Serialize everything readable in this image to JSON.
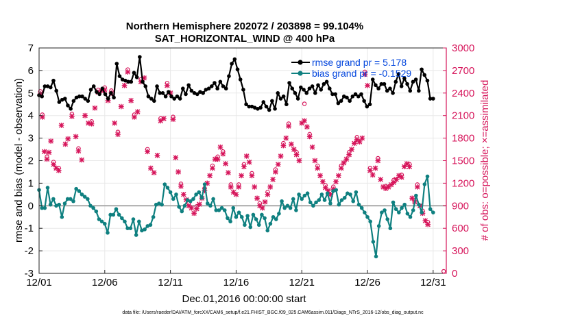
{
  "chart_data": {
    "type": "line",
    "title_line1": "Northern Hemisphere 202072 / 203898 = 99.104%",
    "title_line2": "SAT_HORIZONTAL_WIND @ 400 hPa",
    "xlabel": "Dec.01,2016 00:00:00 start",
    "ylabel_left": "rmse and bias (model - observation)",
    "ylabel_right": "# of obs: o=possible; ×=assimilated",
    "footer": "data file: /Users/raeder/DAI/ATM_forcXX/CAM6_setup/f.e21.FHIST_BGC.f09_025.CAM6assim.011/Diags_NTrS_2016-12/obs_diag_output.nc",
    "x_tick_labels": [
      "12/01",
      "12/06",
      "12/11",
      "12/16",
      "12/21",
      "12/26",
      "12/31"
    ],
    "x_tick_days": [
      1,
      6,
      11,
      16,
      21,
      26,
      31
    ],
    "xlim": [
      1,
      32
    ],
    "ylim_left": [
      -3,
      7
    ],
    "ylim_right": [
      0,
      3000
    ],
    "y_left_ticks": [
      "-3",
      "-2",
      "-1",
      "0",
      "1",
      "2",
      "3",
      "4",
      "5",
      "6",
      "7"
    ],
    "y_right_ticks": [
      "0",
      "300",
      "600",
      "900",
      "1200",
      "1500",
      "1800",
      "2100",
      "2400",
      "2700",
      "3000"
    ],
    "grid": true,
    "legend": [
      {
        "label": "rmse grand pr = 5.178",
        "color": "#000000"
      },
      {
        "label": "bias grand pr = -0.1529",
        "color": "#0f8080"
      }
    ],
    "colors": {
      "rmse": "#000000",
      "bias": "#0f8080",
      "obs": "#d6145a",
      "legend_text": "#0044dd",
      "zero_line": "#aaaaaa"
    },
    "rmse": [
      4.9,
      4.85,
      5.3,
      5.3,
      5.25,
      5.55,
      5.1,
      4.6,
      4.7,
      4.75,
      4.45,
      4.3,
      4.65,
      4.8,
      4.85,
      4.85,
      4.75,
      4.65,
      5.15,
      5.3,
      5.05,
      4.95,
      5.2,
      4.95,
      4.75,
      5.0,
      4.8,
      6.3,
      5.75,
      5.6,
      5.55,
      5.5,
      5.5,
      5.9,
      5.7,
      6.6,
      5.5,
      5.3,
      4.85,
      4.75,
      4.65,
      5.3,
      5.0,
      5.0,
      4.85,
      5.05,
      4.85,
      4.75,
      4.85,
      4.75,
      5.2,
      4.95,
      5.35,
      5.1,
      5.0,
      4.95,
      5.05,
      5.0,
      5.15,
      5.2,
      5.3,
      5.45,
      5.2,
      5.5,
      5.3,
      5.2,
      5.75,
      6.3,
      6.5,
      6.05,
      5.6,
      5.15,
      4.5,
      4.4,
      4.4,
      4.35,
      4.3,
      4.35,
      4.6,
      4.4,
      4.25,
      4.65,
      4.3,
      5.0,
      4.75,
      4.85,
      4.5,
      5.45,
      5.2,
      5.0,
      4.75,
      5.25,
      5.15,
      5.0,
      5.2,
      5.3,
      5.0,
      5.35,
      5.15,
      5.4,
      5.5,
      5.2,
      4.95,
      4.95,
      4.55,
      4.65,
      4.85,
      4.8,
      4.65,
      4.85,
      4.95,
      4.85,
      4.95,
      4.65,
      4.4,
      4.5,
      5.6,
      5.35,
      5.2,
      5.4,
      5.4,
      5.1,
      5.2,
      5.0,
      5.5,
      5.85,
      5.3,
      5.65,
      5.4,
      5.1,
      5.5,
      5.6,
      5.1,
      6.05,
      5.8,
      5.55,
      4.75,
      4.75
    ],
    "bias": [
      0.7,
      -0.1,
      -0.1,
      0.8,
      0.05,
      0.3,
      0.0,
      0.05,
      -0.5,
      0.1,
      0.3,
      0.3,
      0.2,
      0.75,
      0.65,
      0.5,
      0.4,
      0.3,
      0.0,
      -0.1,
      -0.25,
      -0.6,
      -0.7,
      -0.8,
      -1.2,
      -0.4,
      -0.4,
      -0.15,
      -0.4,
      -0.55,
      -0.7,
      -1.0,
      -1.0,
      -0.6,
      -1.3,
      -0.7,
      -1.1,
      -1.05,
      -0.9,
      -0.85,
      -0.5,
      0.05,
      0.1,
      0.05,
      0.95,
      0.8,
      0.6,
      0.3,
      0.5,
      -0.05,
      -0.25,
      0.0,
      0.25,
      0.2,
      0.3,
      0.5,
      0.6,
      0.35,
      0.95,
      0.1,
      0.0,
      0.3,
      -0.2,
      -0.2,
      -0.1,
      -0.2,
      -0.55,
      -0.7,
      -0.1,
      -0.5,
      -0.3,
      -0.5,
      -0.85,
      -0.45,
      -0.95,
      -0.4,
      -0.6,
      -0.85,
      -0.4,
      -0.55,
      -1.1,
      -0.8,
      -0.5,
      -0.6,
      -0.35,
      0.2,
      -0.1,
      0.0,
      -0.1,
      0.3,
      -0.2,
      0.5,
      0.3,
      0.45,
      0.55,
      0.15,
      0.0,
      0.15,
      0.25,
      0.5,
      0.25,
      0.55,
      0.1,
      0.65,
      0.7,
      0.05,
      0.25,
      0.35,
      0.55,
      0.5,
      0.2,
      0.6,
      0.05,
      -0.1,
      -0.3,
      -0.5,
      -0.7,
      -1.6,
      -2.25,
      -0.9,
      -0.3,
      -0.2,
      -0.6,
      -1.0,
      0.15,
      -0.15,
      -0.3,
      -0.1,
      0.05,
      -0.35,
      -0.5,
      -0.2,
      0.45,
      0.05,
      -0.3,
      0.95,
      1.3,
      -0.15,
      -0.3
    ],
    "obs_assimilated": [
      [
        1.1,
        2390
      ],
      [
        1.25,
        2080
      ],
      [
        1.4,
        1620
      ],
      [
        1.6,
        1520
      ],
      [
        1.75,
        1610
      ],
      [
        1.9,
        1760
      ],
      [
        2.1,
        1450
      ],
      [
        2.3,
        1400
      ],
      [
        2.5,
        1370
      ],
      [
        2.7,
        1970
      ],
      [
        3.0,
        1720
      ],
      [
        3.2,
        1790
      ],
      [
        3.5,
        2090
      ],
      [
        3.8,
        1820
      ],
      [
        4.0,
        1630
      ],
      [
        4.25,
        1510
      ],
      [
        4.5,
        2100
      ],
      [
        4.75,
        2000
      ],
      [
        5.0,
        1990
      ],
      [
        5.25,
        2200
      ],
      [
        5.5,
        2410
      ],
      [
        5.75,
        2430
      ],
      [
        6.0,
        2440
      ],
      [
        6.25,
        2300
      ],
      [
        6.5,
        2400
      ],
      [
        6.75,
        2000
      ],
      [
        7.0,
        1850
      ],
      [
        7.25,
        2220
      ],
      [
        7.5,
        2500
      ],
      [
        7.75,
        2680
      ],
      [
        8.0,
        2300
      ],
      [
        8.25,
        2080
      ],
      [
        8.5,
        2150
      ],
      [
        8.75,
        2550
      ],
      [
        9.0,
        2600
      ],
      [
        9.25,
        1620
      ],
      [
        9.5,
        1400
      ],
      [
        9.75,
        1340
      ],
      [
        10.0,
        1570
      ],
      [
        10.25,
        2030
      ],
      [
        10.5,
        2060
      ],
      [
        10.75,
        2500
      ],
      [
        11.0,
        2400
      ],
      [
        11.2,
        2050
      ],
      [
        11.4,
        1540
      ],
      [
        11.6,
        1350
      ],
      [
        11.8,
        1160
      ],
      [
        12.0,
        1050
      ],
      [
        12.2,
        980
      ],
      [
        12.4,
        900
      ],
      [
        12.6,
        870
      ],
      [
        12.8,
        800
      ],
      [
        13.0,
        860
      ],
      [
        13.2,
        920
      ],
      [
        13.4,
        1000
      ],
      [
        13.6,
        1100
      ],
      [
        13.8,
        1200
      ],
      [
        14.0,
        1300
      ],
      [
        14.2,
        1400
      ],
      [
        14.4,
        1520
      ],
      [
        14.6,
        1520
      ],
      [
        14.8,
        1680
      ],
      [
        15.0,
        1590
      ],
      [
        15.2,
        1460
      ],
      [
        15.4,
        1340
      ],
      [
        15.6,
        1150
      ],
      [
        15.8,
        1080
      ],
      [
        16.0,
        1050
      ],
      [
        16.2,
        1150
      ],
      [
        16.4,
        1300
      ],
      [
        16.6,
        1420
      ],
      [
        16.8,
        1560
      ],
      [
        17.0,
        1480
      ],
      [
        17.2,
        1300
      ],
      [
        17.4,
        1150
      ],
      [
        17.6,
        1000
      ],
      [
        17.8,
        900
      ],
      [
        18.0,
        870
      ],
      [
        18.2,
        950
      ],
      [
        18.4,
        1050
      ],
      [
        18.6,
        1150
      ],
      [
        18.8,
        1250
      ],
      [
        19.0,
        1350
      ],
      [
        19.2,
        1450
      ],
      [
        19.4,
        1560
      ],
      [
        19.6,
        1700
      ],
      [
        19.8,
        1800
      ],
      [
        20.0,
        1960
      ],
      [
        20.2,
        1720
      ],
      [
        20.4,
        1650
      ],
      [
        20.6,
        1580
      ],
      [
        20.8,
        1500
      ],
      [
        21.0,
        2000
      ],
      [
        21.2,
        2030
      ],
      [
        21.4,
        1950
      ],
      [
        21.6,
        1820
      ],
      [
        21.8,
        1680
      ],
      [
        22.0,
        1500
      ],
      [
        22.2,
        1400
      ],
      [
        22.4,
        1300
      ],
      [
        22.6,
        1220
      ],
      [
        22.8,
        1140
      ],
      [
        23.0,
        1100
      ],
      [
        23.2,
        1050
      ],
      [
        23.4,
        1120
      ],
      [
        23.6,
        1220
      ],
      [
        23.8,
        1300
      ],
      [
        24.0,
        1400
      ],
      [
        24.2,
        1470
      ],
      [
        24.4,
        1520
      ],
      [
        24.6,
        1580
      ],
      [
        24.8,
        1650
      ],
      [
        25.0,
        1730
      ],
      [
        25.2,
        1780
      ],
      [
        25.4,
        1750
      ],
      [
        25.6,
        1800
      ],
      [
        25.8,
        2650
      ],
      [
        26.0,
        2500
      ],
      [
        26.2,
        1370
      ],
      [
        26.4,
        1310
      ],
      [
        26.6,
        1400
      ],
      [
        26.8,
        1500
      ],
      [
        27.0,
        1250
      ],
      [
        27.2,
        1150
      ],
      [
        27.4,
        1130
      ],
      [
        27.6,
        1150
      ],
      [
        27.8,
        1180
      ],
      [
        28.0,
        1210
      ],
      [
        28.2,
        1250
      ],
      [
        28.4,
        1300
      ],
      [
        28.6,
        1280
      ],
      [
        28.8,
        1420
      ],
      [
        29.0,
        1460
      ],
      [
        29.2,
        1420
      ],
      [
        29.4,
        1000
      ],
      [
        29.6,
        950
      ],
      [
        29.8,
        1150
      ],
      [
        30.0,
        900
      ],
      [
        30.2,
        800
      ],
      [
        30.4,
        700
      ],
      [
        30.6,
        650
      ]
    ],
    "obs_possible": [
      [
        1.1,
        2395
      ],
      [
        1.25,
        2085
      ],
      [
        1.6,
        1525
      ],
      [
        2.1,
        1455
      ],
      [
        2.5,
        1375
      ],
      [
        3.5,
        2095
      ],
      [
        4.0,
        1635
      ],
      [
        5.0,
        1995
      ],
      [
        5.5,
        2415
      ],
      [
        6.0,
        2445
      ],
      [
        6.5,
        2405
      ],
      [
        7.0,
        1855
      ],
      [
        7.75,
        2685
      ],
      [
        8.25,
        2085
      ],
      [
        8.75,
        2555
      ],
      [
        9.25,
        1625
      ],
      [
        10.25,
        2035
      ],
      [
        10.75,
        2505
      ],
      [
        11.2,
        2055
      ],
      [
        11.8,
        1165
      ],
      [
        12.4,
        905
      ],
      [
        13.0,
        865
      ],
      [
        13.6,
        1105
      ],
      [
        14.2,
        1405
      ],
      [
        14.6,
        1525
      ],
      [
        15.0,
        1595
      ],
      [
        15.6,
        1155
      ],
      [
        16.2,
        1155
      ],
      [
        16.6,
        1425
      ],
      [
        17.2,
        1305
      ],
      [
        17.8,
        905
      ],
      [
        18.4,
        1055
      ],
      [
        19.0,
        1355
      ],
      [
        19.6,
        1705
      ],
      [
        20.0,
        1965
      ],
      [
        20.6,
        1585
      ],
      [
        21.2,
        2230
      ],
      [
        21.6,
        1825
      ],
      [
        22.2,
        1405
      ],
      [
        22.8,
        1145
      ],
      [
        23.4,
        1125
      ],
      [
        24.0,
        1405
      ],
      [
        24.6,
        1585
      ],
      [
        25.2,
        1785
      ],
      [
        25.8,
        2655
      ],
      [
        26.2,
        1375
      ],
      [
        26.8,
        1505
      ],
      [
        27.4,
        1135
      ],
      [
        28.0,
        1215
      ],
      [
        28.6,
        1285
      ],
      [
        29.2,
        1425
      ],
      [
        29.8,
        1155
      ],
      [
        30.2,
        805
      ],
      [
        30.6,
        655
      ],
      [
        31.8,
        0
      ]
    ]
  }
}
